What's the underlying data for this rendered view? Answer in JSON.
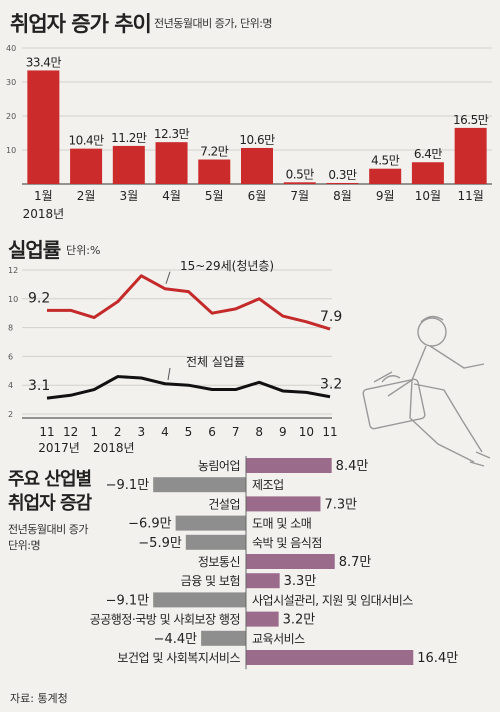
{
  "chart_data": [
    {
      "type": "bar",
      "title": "취업자 증가 추이",
      "subtitle": "전년동월대비 증가, 단위:명",
      "categories": [
        "1월",
        "2월",
        "3월",
        "4월",
        "5월",
        "6월",
        "7월",
        "8월",
        "9월",
        "10월",
        "11월"
      ],
      "year_label": "2018년",
      "values": [
        33.4,
        10.4,
        11.2,
        12.3,
        7.2,
        10.6,
        0.5,
        0.3,
        4.5,
        6.4,
        16.5
      ],
      "value_labels": [
        "33.4만",
        "10.4만",
        "11.2만",
        "12.3만",
        "7.2만",
        "10.6만",
        "0.5만",
        "0.3만",
        "4.5만",
        "6.4만",
        "16.5만"
      ],
      "ylim": [
        0,
        40
      ],
      "yticks": [
        10,
        20,
        30,
        40
      ],
      "colors": {
        "bar": "#cc2b2b"
      }
    },
    {
      "type": "line",
      "title": "실업률",
      "subtitle": "단위:%",
      "x_labels": [
        "11",
        "12",
        "1",
        "2",
        "3",
        "4",
        "5",
        "6",
        "7",
        "8",
        "9",
        "10",
        "11"
      ],
      "year_labels": [
        "2017년",
        "2018년"
      ],
      "ylim": [
        2,
        12
      ],
      "yticks": [
        2,
        4,
        6,
        8,
        10,
        12
      ],
      "series": [
        {
          "name": "15~29세(청년층)",
          "values": [
            9.2,
            9.2,
            8.7,
            9.8,
            11.6,
            10.7,
            10.5,
            9.0,
            9.3,
            10.0,
            8.8,
            8.4,
            7.9
          ],
          "start_label": "9.2",
          "end_label": "7.9",
          "color": "#c42a2a"
        },
        {
          "name": "전체 실업률",
          "values": [
            3.1,
            3.3,
            3.7,
            4.6,
            4.5,
            4.1,
            4.0,
            3.7,
            3.7,
            4.2,
            3.6,
            3.5,
            3.2
          ],
          "start_label": "3.1",
          "end_label": "3.2",
          "color": "#111111"
        }
      ]
    },
    {
      "type": "bar",
      "orientation": "horizontal",
      "title_lines": [
        "주요 산업별",
        "취업자 증감"
      ],
      "subtitle_lines": [
        "전년동월대비 증가",
        "단위:명"
      ],
      "categories": [
        "농림어업",
        "제조업",
        "건설업",
        "도매 및 소매",
        "숙박 및 음식점",
        "정보통신",
        "금융 및 보험",
        "사업시설관리, 지원 및 임대서비스",
        "공공행정·국방 및 사회보장 행정",
        "교육서비스",
        "보건업 및 사회복지서비스"
      ],
      "values": [
        8.4,
        -9.1,
        7.3,
        -6.9,
        -5.9,
        8.7,
        3.3,
        -9.1,
        3.2,
        -4.4,
        16.4
      ],
      "value_labels": [
        "8.4만",
        "−9.1만",
        "7.3만",
        "−6.9만",
        "−5.9만",
        "8.7만",
        "3.3만",
        "−9.1만",
        "3.2만",
        "−4.4만",
        "16.4만"
      ],
      "colors": {
        "positive": "#9b6b8b",
        "negative": "#8e8e8e"
      }
    }
  ],
  "source": "자료: 통계청"
}
